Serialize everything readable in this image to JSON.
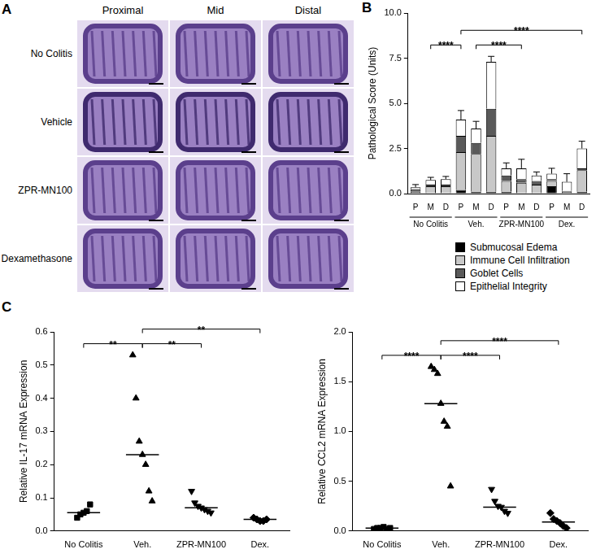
{
  "image_panel": {
    "panel": "A",
    "columns": [
      "Proximal",
      "Mid",
      "Distal"
    ],
    "rows": [
      "No Colitis",
      "Vehicle",
      "ZPR-MN100",
      "Dexamethasone"
    ]
  },
  "chart_data": [
    {
      "panel": "B",
      "type": "bar",
      "stacked": true,
      "legend": "bottom",
      "categories": [
        "P",
        "M",
        "D",
        "P",
        "M",
        "D",
        "P",
        "M",
        "D",
        "P",
        "M",
        "D"
      ],
      "groups": [
        "No Colitis",
        "Veh.",
        "ZPR-MN100",
        "Dex."
      ],
      "y_label": "Pathological Score (Units)",
      "ylim": [
        0,
        10
      ],
      "yticks": [
        {
          "value": 0,
          "label": "0.0"
        },
        2.5,
        {
          "value": 5,
          "label": "5.0"
        },
        7.5,
        {
          "value": 10,
          "label": "10.0"
        }
      ],
      "series": [
        {
          "name": "Submucosal Edema",
          "color": "#000000",
          "values": [
            0,
            0,
            0,
            0.2,
            0.1,
            0.1,
            0.1,
            0,
            0,
            0.4,
            0,
            0.1
          ]
        },
        {
          "name": "Immune Cell Infiltration",
          "color": "#c8c8c8",
          "values": [
            0.1,
            0.4,
            0.4,
            2.1,
            2.1,
            3.1,
            0.6,
            0.6,
            0.5,
            0.3,
            0.1,
            1.2
          ]
        },
        {
          "name": "Goblet Cells",
          "color": "#5a5a5a",
          "values": [
            0.15,
            0.1,
            0.1,
            0.9,
            0.6,
            1.5,
            0.3,
            0.2,
            0.2,
            0.1,
            0.05,
            0.1
          ]
        },
        {
          "name": "Epithelial Integrity",
          "color": "#ffffff",
          "values": [
            0.1,
            0.25,
            0.3,
            0.9,
            0.8,
            2.6,
            0.4,
            0.6,
            0.3,
            0.3,
            0.5,
            1.1
          ]
        }
      ],
      "total_errors": [
        0.15,
        0.15,
        0.15,
        0.5,
        0.4,
        0.3,
        0.3,
        0.5,
        0.2,
        0.3,
        0.45,
        0.4
      ],
      "comparisons": [
        {
          "from": 1,
          "to": 3,
          "label": "****"
        },
        {
          "from": 4,
          "to": 7,
          "label": "****"
        },
        {
          "from": 3,
          "to": 11,
          "label": "****"
        }
      ]
    },
    {
      "panel": "C",
      "type": "scatter",
      "y_label": "Relative IL-17 mRNA Expression",
      "ylim": [
        0,
        0.6
      ],
      "yticks": [
        {
          "value": 0,
          "label": "0.0"
        },
        0.1,
        0.2,
        0.3,
        0.4,
        0.5,
        0.6
      ],
      "series": [
        {
          "name": "No Colitis",
          "marker": "square",
          "color": "#000000",
          "values": [
            0.04,
            0.05,
            0.055,
            0.06,
            0.08
          ],
          "median": 0.055
        },
        {
          "name": "Veh.",
          "marker": "triangle",
          "color": "#000000",
          "values": [
            0.53,
            0.4,
            0.27,
            0.23,
            0.2,
            0.12,
            0.09
          ],
          "median": 0.23
        },
        {
          "name": "ZPR-MN100",
          "marker": "triangle_down",
          "color": "#000000",
          "values": [
            0.12,
            0.085,
            0.075,
            0.07,
            0.065,
            0.06,
            0.055
          ],
          "median": 0.07
        },
        {
          "name": "Dex.",
          "marker": "diamond",
          "color": "#000000",
          "values": [
            0.04,
            0.035,
            0.03,
            0.03,
            0.035
          ],
          "median": 0.035
        }
      ],
      "comparisons": [
        {
          "from": 0,
          "to": 1,
          "label": "**"
        },
        {
          "from": 1,
          "to": 2,
          "label": "**"
        },
        {
          "from": 1,
          "to": 3,
          "label": "**"
        }
      ]
    },
    {
      "type": "scatter",
      "y_label": "Relative CCL2 mRNA Expression",
      "ylim": [
        0,
        2
      ],
      "yticks": [
        {
          "value": 0,
          "label": "0.0"
        },
        0.5,
        {
          "value": 1,
          "label": "1.0"
        },
        1.5,
        {
          "value": 2,
          "label": "2.0"
        }
      ],
      "series": [
        {
          "name": "No Colitis",
          "marker": "square",
          "color": "#000000",
          "values": [
            0.02,
            0.03,
            0.03,
            0.04,
            0.02,
            0.03
          ],
          "median": 0.03
        },
        {
          "name": "Veh.",
          "marker": "triangle",
          "color": "#000000",
          "values": [
            1.65,
            1.62,
            1.58,
            1.28,
            1.1,
            1.05,
            0.45
          ],
          "median": 1.28
        },
        {
          "name": "ZPR-MN100",
          "marker": "triangle_down",
          "color": "#000000",
          "values": [
            0.42,
            0.3,
            0.25,
            0.24,
            0.2,
            0.18
          ],
          "median": 0.24
        },
        {
          "name": "Dex.",
          "marker": "diamond",
          "color": "#000000",
          "values": [
            0.18,
            0.12,
            0.1,
            0.08,
            0.05,
            0.03
          ],
          "median": 0.09
        }
      ],
      "comparisons": [
        {
          "from": 0,
          "to": 1,
          "label": "****"
        },
        {
          "from": 1,
          "to": 2,
          "label": "****"
        },
        {
          "from": 1,
          "to": 3,
          "label": "****"
        }
      ]
    }
  ]
}
